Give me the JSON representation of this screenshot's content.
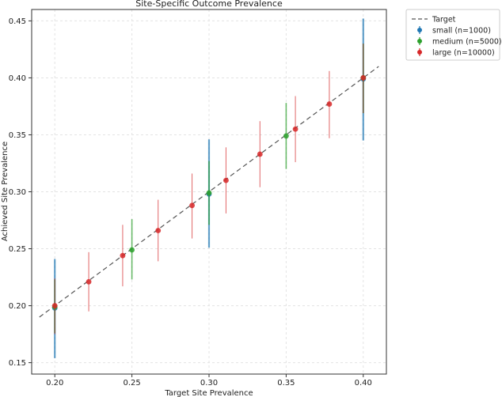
{
  "chart_data": {
    "type": "scatter",
    "title": "Site-Specific Outcome Prevalence",
    "xlabel": "Target Site Prevalence",
    "ylabel": "Achieved Site Prevalence",
    "xlim": [
      0.185,
      0.415
    ],
    "ylim": [
      0.14,
      0.46
    ],
    "xticks": [
      0.2,
      0.25,
      0.3,
      0.35,
      0.4
    ],
    "yticks": [
      0.15,
      0.2,
      0.25,
      0.3,
      0.35,
      0.4,
      0.45
    ],
    "xtick_labels": [
      "0.20",
      "0.25",
      "0.30",
      "0.35",
      "0.40"
    ],
    "ytick_labels": [
      "0.15",
      "0.20",
      "0.25",
      "0.30",
      "0.35",
      "0.40",
      "0.45"
    ],
    "grid": true,
    "legend_position": "outside-top-right",
    "target_line": {
      "name": "Target",
      "x": [
        0.19,
        0.41
      ],
      "y": [
        0.19,
        0.41
      ],
      "color": "#555555",
      "style": "dashed"
    },
    "series": [
      {
        "name": "small (n=1000)",
        "color": "#1f77b4",
        "points": [
          {
            "x": 0.2,
            "y": 0.198,
            "lo": 0.154,
            "hi": 0.241
          },
          {
            "x": 0.3,
            "y": 0.298,
            "lo": 0.251,
            "hi": 0.346
          },
          {
            "x": 0.4,
            "y": 0.399,
            "lo": 0.345,
            "hi": 0.452
          }
        ]
      },
      {
        "name": "medium (n=5000)",
        "color": "#2ca02c",
        "points": [
          {
            "x": 0.2,
            "y": 0.199,
            "lo": 0.176,
            "hi": 0.223
          },
          {
            "x": 0.25,
            "y": 0.249,
            "lo": 0.223,
            "hi": 0.276
          },
          {
            "x": 0.3,
            "y": 0.299,
            "lo": 0.271,
            "hi": 0.327
          },
          {
            "x": 0.35,
            "y": 0.349,
            "lo": 0.32,
            "hi": 0.378
          },
          {
            "x": 0.4,
            "y": 0.4,
            "lo": 0.369,
            "hi": 0.43
          }
        ]
      },
      {
        "name": "large (n=10000)",
        "color": "#d62728",
        "points": [
          {
            "x": 0.2,
            "y": 0.2,
            "lo": 0.175,
            "hi": 0.224
          },
          {
            "x": 0.222,
            "y": 0.221,
            "lo": 0.195,
            "hi": 0.247
          },
          {
            "x": 0.244,
            "y": 0.244,
            "lo": 0.217,
            "hi": 0.271
          },
          {
            "x": 0.267,
            "y": 0.266,
            "lo": 0.239,
            "hi": 0.293
          },
          {
            "x": 0.289,
            "y": 0.288,
            "lo": 0.259,
            "hi": 0.316
          },
          {
            "x": 0.311,
            "y": 0.31,
            "lo": 0.281,
            "hi": 0.339
          },
          {
            "x": 0.333,
            "y": 0.333,
            "lo": 0.304,
            "hi": 0.362
          },
          {
            "x": 0.356,
            "y": 0.355,
            "lo": 0.326,
            "hi": 0.384
          },
          {
            "x": 0.378,
            "y": 0.377,
            "lo": 0.347,
            "hi": 0.406
          },
          {
            "x": 0.4,
            "y": 0.4,
            "lo": 0.369,
            "hi": 0.43
          }
        ]
      }
    ]
  }
}
